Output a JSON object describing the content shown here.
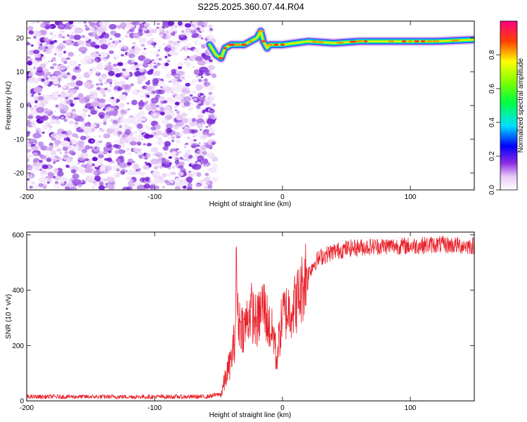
{
  "title": "S225.2025.360.07.44.R04",
  "chart_data": [
    {
      "type": "heatmap",
      "xlabel": "Height of straight line (km)",
      "ylabel": "Frequency (Hz)",
      "xlim": [
        -200,
        150
      ],
      "ylim": [
        -25,
        25
      ],
      "xticks": [
        "-200",
        "-100",
        "0",
        "100"
      ],
      "yticks": [
        "-20",
        "-10",
        "0",
        "10",
        "20"
      ],
      "noise_region_x": [
        -200,
        -55
      ],
      "ridge": {
        "description_points_x": [
          -57,
          -52,
          -48,
          -45,
          -40,
          -35,
          -30,
          -25,
          -20,
          -17,
          -15,
          -12,
          -10,
          -5,
          0,
          20,
          40,
          60,
          80,
          100,
          120,
          150
        ],
        "description_points_y": [
          18,
          15,
          14,
          17,
          18,
          18,
          18,
          19,
          20,
          22,
          19,
          17,
          18,
          18,
          18,
          19,
          18.5,
          19,
          19,
          19,
          19,
          19.5
        ]
      },
      "colorbar": {
        "label": "Normalized spectral amplitude",
        "ticks": [
          "0.0",
          "0.2",
          "0.4",
          "0.6",
          "0.8"
        ],
        "range": [
          0,
          1
        ]
      }
    },
    {
      "type": "line",
      "xlabel": "Height of straight line (km)",
      "ylabel": "SNR (10 * v/v)",
      "xlim": [
        -200,
        150
      ],
      "ylim": [
        0,
        610
      ],
      "xticks": [
        "-200",
        "-100",
        "0",
        "100"
      ],
      "yticks": [
        "0",
        "200",
        "400",
        "600"
      ],
      "color": "#e8202a",
      "series": [
        {
          "x": [
            -200,
            -150,
            -100,
            -60,
            -48,
            -44,
            -40,
            -37,
            -36,
            -35,
            -30,
            -25,
            -20,
            -15,
            -10,
            -6,
            -5,
            0,
            5,
            10,
            15,
            18,
            20,
            25,
            30,
            40,
            50,
            60,
            80,
            100,
            120,
            150
          ],
          "values": [
            15,
            15,
            15,
            15,
            25,
            90,
            150,
            230,
            500,
            300,
            260,
            330,
            280,
            350,
            260,
            230,
            140,
            310,
            330,
            350,
            400,
            460,
            460,
            500,
            520,
            540,
            550,
            555,
            560,
            560,
            565,
            560
          ]
        }
      ]
    }
  ]
}
